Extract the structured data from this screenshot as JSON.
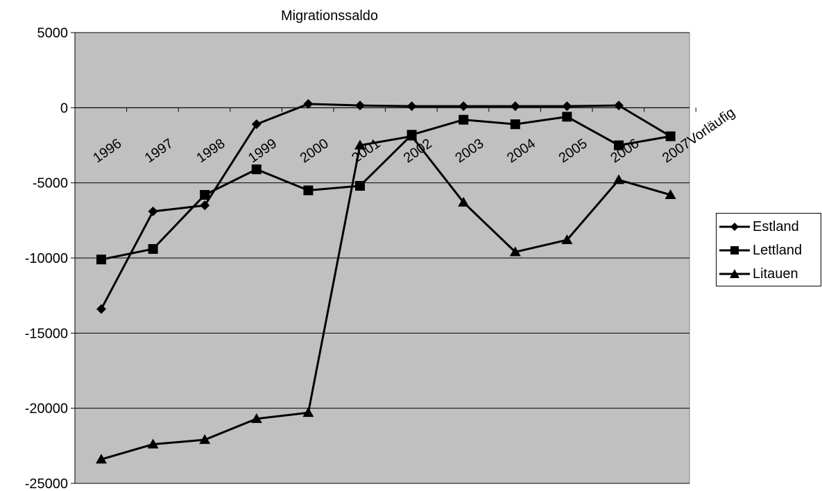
{
  "chart_data": {
    "type": "line",
    "title": "Migrationssaldo",
    "xlabel": "",
    "ylabel": "",
    "ylim": [
      -25000,
      5000
    ],
    "yticks": [
      "5000",
      "0",
      "-5000",
      "-10000",
      "-15000",
      "-20000",
      "-25000"
    ],
    "categories": [
      "1996",
      "1997",
      "1998",
      "1999",
      "2000",
      "2001",
      "2002",
      "2003",
      "2004",
      "2005",
      "2006",
      "2007Vorläufig"
    ],
    "grid": true,
    "legend_position": "right",
    "series": [
      {
        "name": "Estland",
        "marker": "diamond",
        "color": "#000000",
        "values": [
          -13400,
          -6900,
          -6500,
          -1100,
          250,
          150,
          100,
          100,
          100,
          100,
          150,
          -1900
        ]
      },
      {
        "name": "Lettland",
        "marker": "square",
        "color": "#000000",
        "values": [
          -10100,
          -9400,
          -5800,
          -4100,
          -5500,
          -5200,
          -1800,
          -800,
          -1100,
          -600,
          -2500,
          -1900
        ]
      },
      {
        "name": "Litauen",
        "marker": "triangle",
        "color": "#000000",
        "values": [
          -23400,
          -22400,
          -22100,
          -20700,
          -20300,
          -2500,
          -1900,
          -6300,
          -9600,
          -8800,
          -4800,
          -5800
        ]
      }
    ],
    "plot_background": "#c0c0c0"
  }
}
